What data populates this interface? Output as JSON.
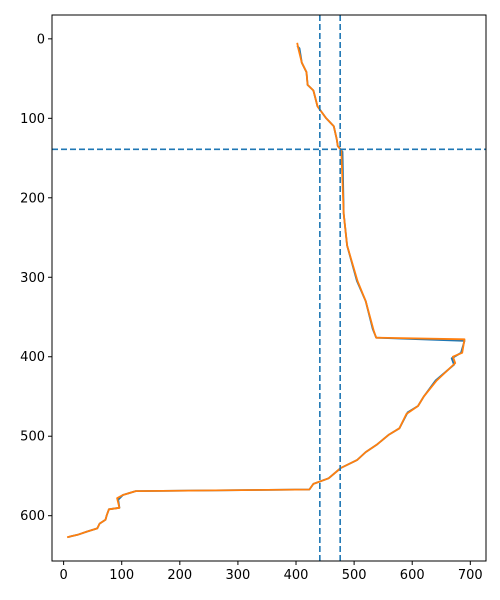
{
  "chart_data": {
    "type": "line",
    "title": "",
    "xlabel": "",
    "ylabel": "",
    "xlim": [
      -20,
      727
    ],
    "ylim": [
      657,
      -30
    ],
    "y_inverted": true,
    "grid": false,
    "x_ticks": [
      0,
      100,
      200,
      300,
      400,
      500,
      600,
      700
    ],
    "y_ticks": [
      0,
      100,
      200,
      300,
      400,
      500,
      600
    ],
    "reference_lines": {
      "vertical": [
        441,
        476
      ],
      "horizontal": [
        139
      ],
      "style": "dashed",
      "color": "#1f77b4"
    },
    "series": [
      {
        "color": "#1f77b4",
        "points": [
          [
            402,
            9
          ],
          [
            406,
            12
          ],
          [
            410,
            30
          ],
          [
            418,
            42
          ],
          [
            420,
            58
          ],
          [
            430,
            65
          ],
          [
            437,
            85
          ],
          [
            452,
            100
          ],
          [
            465,
            110
          ],
          [
            470,
            126
          ],
          [
            472,
            135
          ],
          [
            480,
            142
          ],
          [
            482,
            220
          ],
          [
            488,
            260
          ],
          [
            505,
            305
          ],
          [
            520,
            330
          ],
          [
            532,
            365
          ],
          [
            538,
            376
          ],
          [
            690,
            380
          ],
          [
            684,
            395
          ],
          [
            668,
            402
          ],
          [
            672,
            410
          ],
          [
            640,
            430
          ],
          [
            620,
            450
          ],
          [
            610,
            462
          ],
          [
            592,
            470
          ],
          [
            578,
            490
          ],
          [
            560,
            498
          ],
          [
            540,
            510
          ],
          [
            520,
            520
          ],
          [
            505,
            530
          ],
          [
            477,
            540
          ],
          [
            456,
            553
          ],
          [
            430,
            560
          ],
          [
            423,
            567
          ],
          [
            124,
            569
          ],
          [
            102,
            574
          ],
          [
            94,
            580
          ],
          [
            96,
            590
          ],
          [
            78,
            592
          ],
          [
            74,
            600
          ],
          [
            72,
            605
          ],
          [
            62,
            610
          ],
          [
            58,
            616
          ],
          [
            40,
            620
          ],
          [
            24,
            624
          ],
          [
            12,
            626
          ],
          [
            8,
            627
          ]
        ]
      },
      {
        "color": "#ff7f0e",
        "points": [
          [
            402,
            5
          ],
          [
            404,
            12
          ],
          [
            410,
            30
          ],
          [
            418,
            42
          ],
          [
            420,
            58
          ],
          [
            430,
            65
          ],
          [
            437,
            85
          ],
          [
            452,
            100
          ],
          [
            465,
            110
          ],
          [
            470,
            126
          ],
          [
            472,
            135
          ],
          [
            478,
            140
          ],
          [
            482,
            220
          ],
          [
            488,
            260
          ],
          [
            506,
            305
          ],
          [
            520,
            330
          ],
          [
            534,
            368
          ],
          [
            538,
            376
          ],
          [
            690,
            378
          ],
          [
            686,
            395
          ],
          [
            670,
            400
          ],
          [
            674,
            408
          ],
          [
            642,
            430
          ],
          [
            620,
            450
          ],
          [
            610,
            462
          ],
          [
            590,
            472
          ],
          [
            578,
            490
          ],
          [
            560,
            498
          ],
          [
            540,
            510
          ],
          [
            520,
            520
          ],
          [
            505,
            530
          ],
          [
            477,
            540
          ],
          [
            456,
            553
          ],
          [
            430,
            560
          ],
          [
            423,
            567
          ],
          [
            124,
            569
          ],
          [
            102,
            574
          ],
          [
            92,
            578
          ],
          [
            96,
            590
          ],
          [
            78,
            592
          ],
          [
            74,
            600
          ],
          [
            72,
            605
          ],
          [
            62,
            610
          ],
          [
            58,
            616
          ],
          [
            40,
            620
          ],
          [
            24,
            624
          ],
          [
            12,
            626
          ],
          [
            6,
            627
          ]
        ]
      }
    ]
  }
}
